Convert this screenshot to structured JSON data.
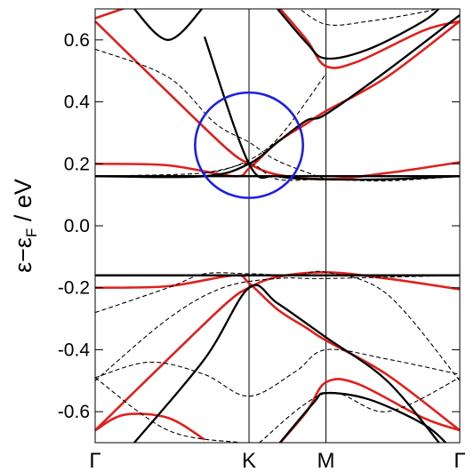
{
  "chart_data": {
    "type": "line",
    "ylabel": {
      "main": "ε−ε",
      "subscript": "F",
      "unit": " / eV"
    },
    "xlim": [
      0,
      1
    ],
    "ylim": [
      -0.7,
      0.7
    ],
    "y_ticks": [
      -0.6,
      -0.4,
      -0.2,
      0.0,
      0.2,
      0.4,
      0.6
    ],
    "y_tick_labels": [
      "-0.6",
      "-0.4",
      "-0.2",
      "0.0",
      "0.2",
      "0.4",
      "0.6"
    ],
    "high_symmetry_points": [
      {
        "label": "Γ",
        "x": 0.0
      },
      {
        "label": "K",
        "x": 0.422
      },
      {
        "label": "M",
        "x": 0.633
      },
      {
        "label": "Γ",
        "x": 1.0
      }
    ],
    "grid": false,
    "series": [
      {
        "color": "#e0201c",
        "style": "solid",
        "points": [
          [
            0,
            0.66
          ],
          [
            0.2,
            0.43
          ],
          [
            0.36,
            0.25
          ],
          [
            0.422,
            0.2
          ],
          [
            0.5,
            0.165
          ],
          [
            0.633,
            0.15
          ],
          [
            0.8,
            0.17
          ],
          [
            1,
            0.205
          ]
        ]
      },
      {
        "color": "#e0201c",
        "style": "solid",
        "points": [
          [
            0,
            0.2
          ],
          [
            0.2,
            0.195
          ],
          [
            0.38,
            0.16
          ],
          [
            0.422,
            0.185
          ],
          [
            0.5,
            0.27
          ],
          [
            0.58,
            0.33
          ],
          [
            0.633,
            0.37
          ],
          [
            0.8,
            0.48
          ],
          [
            1,
            0.66
          ]
        ]
      },
      {
        "color": "#e0201c",
        "style": "solid",
        "points": [
          [
            0,
            0.67
          ],
          [
            0.1,
            0.71
          ]
        ]
      },
      {
        "color": "#e0201c",
        "style": "solid",
        "points": [
          [
            0.5,
            0.71
          ],
          [
            0.58,
            0.6
          ],
          [
            0.633,
            0.515
          ],
          [
            0.72,
            0.53
          ],
          [
            0.9,
            0.63
          ],
          [
            1,
            0.66
          ]
        ]
      },
      {
        "color": "#e0201c",
        "style": "solid",
        "points": [
          [
            0,
            -0.2
          ],
          [
            0.2,
            -0.195
          ],
          [
            0.38,
            -0.16
          ],
          [
            0.422,
            -0.185
          ],
          [
            0.5,
            -0.27
          ],
          [
            0.58,
            -0.33
          ],
          [
            0.633,
            -0.37
          ],
          [
            0.8,
            -0.48
          ],
          [
            1,
            -0.66
          ]
        ]
      },
      {
        "color": "#e0201c",
        "style": "solid",
        "points": [
          [
            0,
            -0.66
          ],
          [
            0.2,
            -0.43
          ],
          [
            0.36,
            -0.25
          ],
          [
            0.422,
            -0.2
          ],
          [
            0.5,
            -0.165
          ],
          [
            0.633,
            -0.15
          ],
          [
            0.8,
            -0.17
          ],
          [
            1,
            -0.205
          ]
        ]
      },
      {
        "color": "#e0201c",
        "style": "solid",
        "points": [
          [
            0,
            -0.66
          ],
          [
            0.08,
            -0.61
          ],
          [
            0.2,
            -0.62
          ],
          [
            0.3,
            -0.69
          ]
        ]
      },
      {
        "color": "#e0201c",
        "style": "solid",
        "points": [
          [
            0.5,
            -0.71
          ],
          [
            0.58,
            -0.6
          ],
          [
            0.633,
            -0.505
          ],
          [
            0.72,
            -0.51
          ],
          [
            0.9,
            -0.62
          ],
          [
            1,
            -0.66
          ]
        ]
      },
      {
        "color": "#000000",
        "style": "solid",
        "points": [
          [
            0,
            0.16
          ],
          [
            1,
            0.16
          ]
        ]
      },
      {
        "color": "#000000",
        "style": "solid",
        "points": [
          [
            0,
            -0.16
          ],
          [
            1,
            -0.16
          ]
        ]
      },
      {
        "color": "#000000",
        "style": "solid",
        "points": [
          [
            0.3,
            0.61
          ],
          [
            0.422,
            0.2
          ],
          [
            0.5,
            0.16
          ],
          [
            0.633,
            0.15
          ],
          [
            0.8,
            0.15
          ],
          [
            1,
            0.16
          ]
        ]
      },
      {
        "color": "#000000",
        "style": "solid",
        "points": [
          [
            0,
            0.16
          ],
          [
            0.3,
            0.16
          ],
          [
            0.422,
            0.2
          ],
          [
            0.5,
            0.27
          ],
          [
            0.58,
            0.34
          ],
          [
            0.633,
            0.36
          ],
          [
            0.8,
            0.5
          ],
          [
            1,
            0.68
          ]
        ]
      },
      {
        "color": "#000000",
        "style": "solid",
        "points": [
          [
            0.1,
            0.71
          ],
          [
            0.2,
            0.6
          ],
          [
            0.3,
            0.71
          ]
        ]
      },
      {
        "color": "#000000",
        "style": "solid",
        "points": [
          [
            0.5,
            0.7
          ],
          [
            0.58,
            0.59
          ],
          [
            0.633,
            0.54
          ],
          [
            0.75,
            0.57
          ],
          [
            0.9,
            0.66
          ],
          [
            0.95,
            0.71
          ]
        ]
      },
      {
        "color": "#000000",
        "style": "solid",
        "points": [
          [
            0.1,
            -0.71
          ],
          [
            0.3,
            -0.43
          ],
          [
            0.422,
            -0.2
          ],
          [
            0.5,
            -0.25
          ],
          [
            0.633,
            -0.36
          ],
          [
            0.8,
            -0.5
          ],
          [
            0.95,
            -0.71
          ]
        ]
      },
      {
        "color": "#000000",
        "style": "solid",
        "points": [
          [
            0.5,
            -0.71
          ],
          [
            0.6,
            -0.57
          ],
          [
            0.633,
            -0.54
          ],
          [
            0.75,
            -0.56
          ],
          [
            0.9,
            -0.64
          ],
          [
            0.97,
            -0.71
          ]
        ]
      },
      {
        "color": "#000000",
        "style": "solid",
        "points": [
          [
            0,
            -0.16
          ],
          [
            1,
            -0.16
          ]
        ]
      },
      {
        "color": "#000000",
        "style": "dashed",
        "points": [
          [
            0,
            0.16
          ],
          [
            0.3,
            0.17
          ],
          [
            0.422,
            0.2
          ],
          [
            0.5,
            0.15
          ],
          [
            0.633,
            0.15
          ],
          [
            0.8,
            0.145
          ],
          [
            1,
            0.16
          ]
        ]
      },
      {
        "color": "#000000",
        "style": "dashed",
        "points": [
          [
            0,
            0.57
          ],
          [
            0.2,
            0.48
          ],
          [
            0.33,
            0.33
          ],
          [
            0.422,
            0.27
          ],
          [
            0.5,
            0.21
          ],
          [
            0.633,
            0.15
          ]
        ]
      },
      {
        "color": "#000000",
        "style": "dashed",
        "points": [
          [
            0.3,
            0.17
          ],
          [
            0.4,
            0.2
          ],
          [
            0.5,
            0.28
          ],
          [
            0.633,
            0.49
          ]
        ]
      },
      {
        "color": "#000000",
        "style": "dashed",
        "points": [
          [
            0.55,
            0.71
          ],
          [
            0.633,
            0.65
          ],
          [
            0.75,
            0.66
          ],
          [
            0.9,
            0.69
          ],
          [
            0.97,
            0.71
          ]
        ]
      },
      {
        "color": "#000000",
        "style": "dashed",
        "points": [
          [
            0,
            -0.28
          ],
          [
            0.2,
            -0.2
          ],
          [
            0.3,
            -0.155
          ],
          [
            0.422,
            -0.155
          ],
          [
            0.55,
            -0.16
          ],
          [
            0.633,
            -0.15
          ],
          [
            0.8,
            -0.22
          ],
          [
            1,
            -0.5
          ]
        ]
      },
      {
        "color": "#000000",
        "style": "dashed",
        "points": [
          [
            0,
            -0.5
          ],
          [
            0.2,
            -0.3
          ],
          [
            0.35,
            -0.2
          ],
          [
            0.5,
            -0.17
          ],
          [
            0.633,
            -0.17
          ],
          [
            1,
            -0.16
          ]
        ]
      },
      {
        "color": "#000000",
        "style": "dashed",
        "points": [
          [
            0,
            -0.49
          ],
          [
            0.15,
            -0.44
          ],
          [
            0.3,
            -0.48
          ],
          [
            0.422,
            -0.55
          ],
          [
            0.55,
            -0.47
          ],
          [
            0.633,
            -0.4
          ],
          [
            0.8,
            -0.43
          ],
          [
            1,
            -0.48
          ]
        ]
      },
      {
        "color": "#000000",
        "style": "dashed",
        "points": [
          [
            0,
            -0.49
          ],
          [
            0.2,
            -0.66
          ],
          [
            0.4,
            -0.7
          ]
        ]
      },
      {
        "color": "#000000",
        "style": "dashed",
        "points": [
          [
            0.45,
            -0.7
          ],
          [
            0.633,
            -0.54
          ],
          [
            0.8,
            -0.6
          ],
          [
            1,
            -0.49
          ]
        ]
      }
    ],
    "annotation": {
      "shape": "ellipse",
      "color": "#1e1ee6",
      "center": [
        0.422,
        0.26
      ],
      "rx": 0.148,
      "ry": 0.17
    }
  }
}
